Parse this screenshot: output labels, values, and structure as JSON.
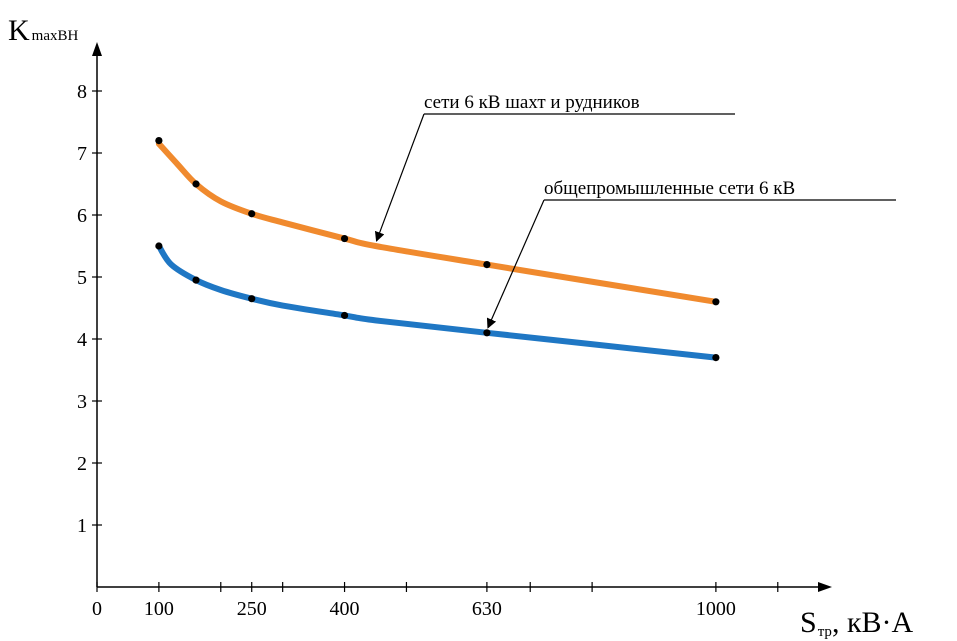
{
  "chart_data": {
    "type": "line",
    "y_axis": {
      "main": "K",
      "sub": "maxВН"
    },
    "x_axis": {
      "main": "S",
      "sub": "тр",
      "unit": ", кВ·А"
    },
    "ylim": [
      0,
      8
    ],
    "y_ticks": [
      1,
      2,
      3,
      4,
      5,
      6,
      7,
      8
    ],
    "xlim": [
      0,
      1200
    ],
    "x_tick_labels": [
      {
        "v": 0,
        "label": "0"
      },
      {
        "v": 100,
        "label": "100"
      },
      {
        "v": 250,
        "label": "250"
      },
      {
        "v": 400,
        "label": "400"
      },
      {
        "v": 630,
        "label": "630"
      },
      {
        "v": 1000,
        "label": "1000"
      }
    ],
    "x_minor_ticks": [
      200,
      300,
      500,
      700,
      800,
      1100
    ],
    "series": [
      {
        "name": "сети 6 кВ шахт и рудников",
        "color": "#f08a2e",
        "x": [
          100,
          160,
          250,
          400,
          630,
          1000
        ],
        "values": [
          7.2,
          6.5,
          6.02,
          5.62,
          5.2,
          4.6
        ],
        "curve_x": [
          100,
          130,
          160,
          200,
          250,
          300,
          400,
          450,
          630,
          1000
        ],
        "curve_y": [
          7.15,
          6.82,
          6.5,
          6.22,
          6.02,
          5.88,
          5.62,
          5.5,
          5.2,
          4.6
        ]
      },
      {
        "name": "общепромышленные сети 6 кВ",
        "color": "#1f77c4",
        "x": [
          100,
          160,
          250,
          400,
          630,
          1000
        ],
        "values": [
          5.5,
          4.95,
          4.65,
          4.38,
          4.1,
          3.7
        ],
        "curve_x": [
          100,
          120,
          160,
          200,
          250,
          300,
          400,
          450,
          630,
          1000
        ],
        "curve_y": [
          5.5,
          5.2,
          4.95,
          4.79,
          4.65,
          4.54,
          4.38,
          4.3,
          4.1,
          3.7
        ]
      }
    ],
    "annotations": [
      {
        "text": "сети 6 кВ шахт и рудников",
        "target_x": 450,
        "target_y": 5.5
      },
      {
        "text": "общепромышленные сети 6 кВ",
        "target_x": 630,
        "target_y": 4.1
      }
    ],
    "grid": false
  }
}
